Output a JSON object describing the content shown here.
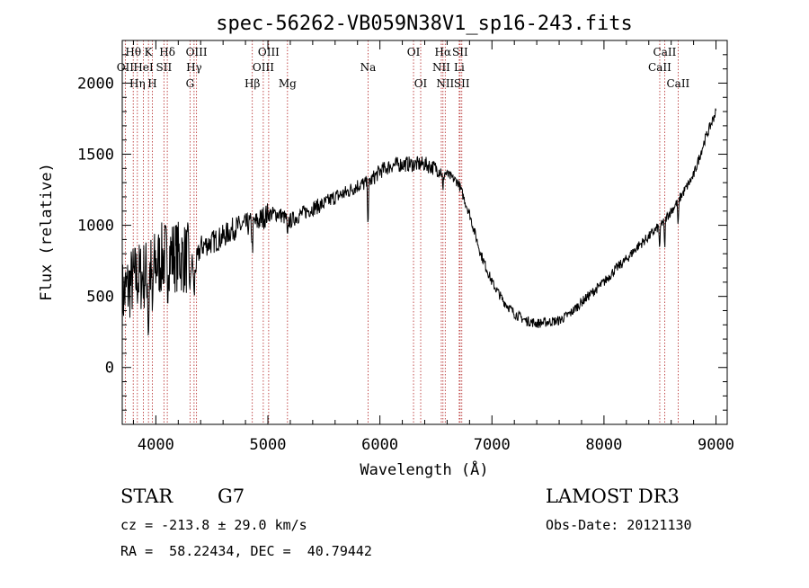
{
  "chart_data": {
    "type": "line",
    "title": "spec-56262-VB059N38V1_sp16-243.fits",
    "xlabel": "Wavelength (Å)",
    "ylabel": "Flux (relative)",
    "xlim": [
      3700,
      9100
    ],
    "ylim": [
      -400,
      2300
    ],
    "x_ticks": [
      4000,
      5000,
      6000,
      7000,
      8000,
      9000
    ],
    "y_ticks": [
      0,
      500,
      1000,
      1500,
      2000
    ],
    "continuum_anchors": [
      [
        3700,
        500
      ],
      [
        3800,
        620
      ],
      [
        3900,
        650
      ],
      [
        4000,
        720
      ],
      [
        4100,
        800
      ],
      [
        4200,
        780
      ],
      [
        4300,
        760
      ],
      [
        4350,
        700
      ],
      [
        4400,
        850
      ],
      [
        4500,
        880
      ],
      [
        4600,
        920
      ],
      [
        4700,
        980
      ],
      [
        4800,
        1000
      ],
      [
        4900,
        1020
      ],
      [
        5000,
        1080
      ],
      [
        5100,
        1080
      ],
      [
        5200,
        1030
      ],
      [
        5300,
        1080
      ],
      [
        5400,
        1120
      ],
      [
        5500,
        1150
      ],
      [
        5600,
        1200
      ],
      [
        5700,
        1230
      ],
      [
        5800,
        1280
      ],
      [
        5900,
        1300
      ],
      [
        6000,
        1380
      ],
      [
        6100,
        1420
      ],
      [
        6200,
        1430
      ],
      [
        6300,
        1430
      ],
      [
        6400,
        1430
      ],
      [
        6500,
        1400
      ],
      [
        6600,
        1360
      ],
      [
        6700,
        1300
      ],
      [
        6800,
        1080
      ],
      [
        6900,
        800
      ],
      [
        7000,
        600
      ],
      [
        7100,
        470
      ],
      [
        7200,
        380
      ],
      [
        7300,
        330
      ],
      [
        7400,
        310
      ],
      [
        7500,
        320
      ],
      [
        7600,
        330
      ],
      [
        7700,
        380
      ],
      [
        7800,
        460
      ],
      [
        7900,
        530
      ],
      [
        8000,
        600
      ],
      [
        8100,
        690
      ],
      [
        8200,
        760
      ],
      [
        8300,
        850
      ],
      [
        8400,
        920
      ],
      [
        8500,
        1000
      ],
      [
        8600,
        1100
      ],
      [
        8700,
        1220
      ],
      [
        8800,
        1350
      ],
      [
        8900,
        1600
      ],
      [
        8950,
        1700
      ],
      [
        9000,
        1800
      ]
    ],
    "lines": [
      {
        "name": "OII",
        "wavelength": 3727,
        "row": 1
      },
      {
        "name": "Hθ",
        "wavelength": 3798,
        "row": 0
      },
      {
        "name": "Hη",
        "wavelength": 3835,
        "row": 2
      },
      {
        "name": "HeI",
        "wavelength": 3889,
        "row": 1
      },
      {
        "name": "K",
        "wavelength": 3934,
        "row": 0
      },
      {
        "name": "H",
        "wavelength": 3969,
        "row": 2
      },
      {
        "name": "SII",
        "wavelength": 4072,
        "row": 1
      },
      {
        "name": "Hδ",
        "wavelength": 4102,
        "row": 0
      },
      {
        "name": "G",
        "wavelength": 4305,
        "row": 2
      },
      {
        "name": "Hγ",
        "wavelength": 4341,
        "row": 1
      },
      {
        "name": "OIII",
        "wavelength": 4363,
        "row": 0
      },
      {
        "name": "Hβ",
        "wavelength": 4861,
        "row": 2
      },
      {
        "name": "OIII",
        "wavelength": 4959,
        "row": 1
      },
      {
        "name": "OIII",
        "wavelength": 5007,
        "row": 0
      },
      {
        "name": "Mg",
        "wavelength": 5175,
        "row": 2
      },
      {
        "name": "Na",
        "wavelength": 5894,
        "row": 1
      },
      {
        "name": "OI",
        "wavelength": 6300,
        "row": 0
      },
      {
        "name": "OI",
        "wavelength": 6364,
        "row": 2
      },
      {
        "name": "NII",
        "wavelength": 6548,
        "row": 1
      },
      {
        "name": "Hα",
        "wavelength": 6563,
        "row": 0
      },
      {
        "name": "NII",
        "wavelength": 6583,
        "row": 2
      },
      {
        "name": "Li",
        "wavelength": 6708,
        "row": 1
      },
      {
        "name": "SII",
        "wavelength": 6716,
        "row": 0
      },
      {
        "name": "SII",
        "wavelength": 6731,
        "row": 2
      },
      {
        "name": "CaII",
        "wavelength": 8498,
        "row": 1
      },
      {
        "name": "CaII",
        "wavelength": 8542,
        "row": 0
      },
      {
        "name": "CaII",
        "wavelength": 8662,
        "row": 2
      }
    ]
  },
  "info": {
    "class": "STAR",
    "subclass": "G7",
    "survey": "LAMOST DR3",
    "redshift": "cz = -213.8 ± 29.0 km/s",
    "obs_date": "Obs-Date: 20121130",
    "coords": "RA =  58.22434, DEC =  40.79442"
  },
  "colors": {
    "line_marker": "#b22222",
    "spectrum": "#000000",
    "axes": "#000000"
  }
}
